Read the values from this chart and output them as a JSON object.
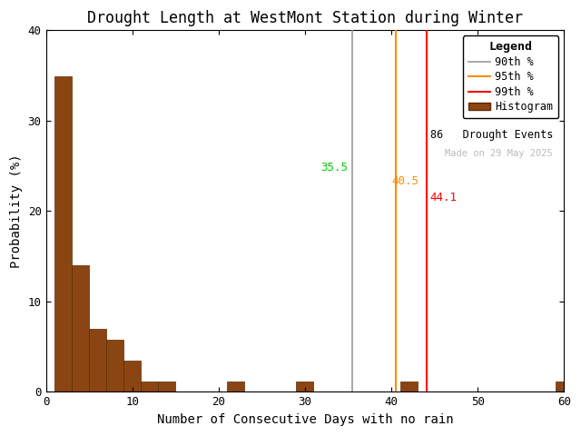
{
  "title": "Drought Length at WestMont Station during Winter",
  "xlabel": "Number of Consecutive Days with no rain",
  "ylabel": "Probability (%)",
  "xlim": [
    0,
    60
  ],
  "ylim": [
    0,
    40
  ],
  "xticks": [
    0,
    10,
    20,
    30,
    40,
    50,
    60
  ],
  "yticks": [
    0,
    10,
    20,
    30,
    40
  ],
  "bar_color": "#8B4513",
  "bar_edgecolor": "#5C2A00",
  "bins": [
    1,
    3,
    5,
    7,
    9,
    11,
    13,
    21,
    29,
    41,
    59
  ],
  "bar_heights": [
    34.88,
    14.0,
    6.98,
    5.81,
    3.49,
    1.16,
    1.16,
    1.16,
    1.16,
    1.16,
    1.16
  ],
  "percentile_90": 35.5,
  "percentile_95": 40.5,
  "percentile_99": 44.1,
  "color_90_line": "#999999",
  "color_90_label": "#00CC00",
  "color_95": "#FF8C00",
  "color_99": "#FF0000",
  "drought_events": 86,
  "made_on_text": "Made on 29 May 2025",
  "made_on_color": "#BBBBBB",
  "background_color": "#FFFFFF",
  "legend_title": "Legend",
  "title_fontsize": 12,
  "label_fontsize": 10,
  "tick_fontsize": 9
}
